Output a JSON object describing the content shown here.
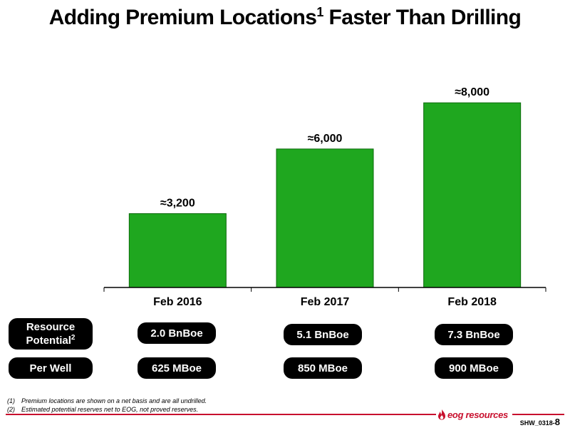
{
  "title": {
    "text": "Adding Premium Locations",
    "sup": "1",
    "rest": " Faster Than Drilling"
  },
  "chart_data": {
    "type": "bar",
    "categories": [
      "Feb 2016",
      "Feb 2017",
      "Feb 2018"
    ],
    "values": [
      3200,
      6000,
      8000
    ],
    "data_labels": [
      "≈3,200",
      "≈6,000",
      "≈8,000"
    ],
    "bar_color": "#1fa71f",
    "title": "",
    "xlabel": "",
    "ylabel": "",
    "ylim": [
      0,
      8900
    ],
    "grid": false
  },
  "metrics": {
    "resource_potential": {
      "label": "Resource Potential",
      "sup": "2",
      "values": [
        "2.0 BnBoe",
        "5.1 BnBoe",
        "7.3 BnBoe"
      ]
    },
    "per_well": {
      "label": "Per Well",
      "values": [
        "625 MBoe",
        "850 MBoe",
        "900 MBoe"
      ]
    }
  },
  "footnotes": [
    {
      "num": "(1)",
      "text": "Premium locations are shown on a net basis and are all undrilled."
    },
    {
      "num": "(2)",
      "text": "Estimated potential reserves net to EOG, not proved reserves."
    }
  ],
  "logo": {
    "text": "eog resources",
    "icon": "flame-icon"
  },
  "slide_code": {
    "prefix": "SHW_0318-",
    "page": "8"
  },
  "colors": {
    "accent_red": "#c8102e",
    "pill_bg": "#000000",
    "bar_green": "#1fa71f"
  }
}
